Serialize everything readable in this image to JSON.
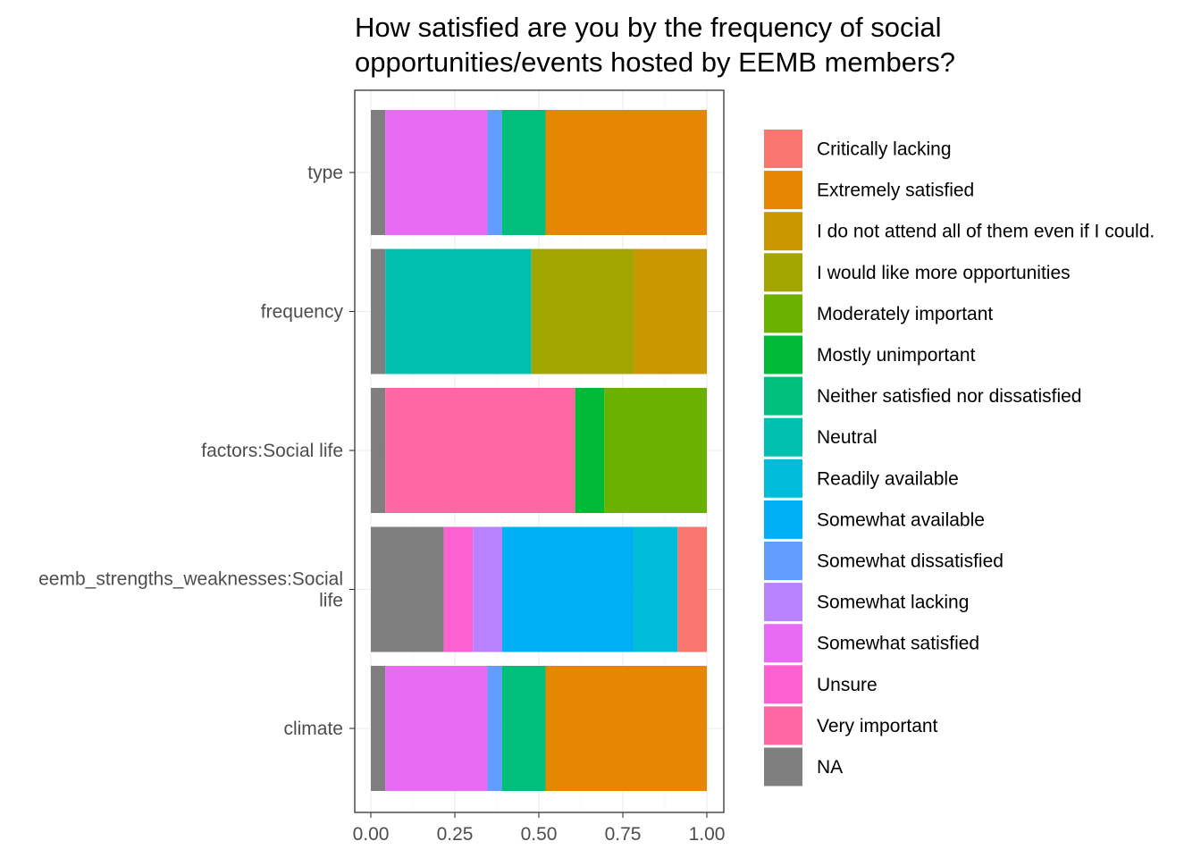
{
  "chart_data": {
    "type": "bar",
    "orientation": "horizontal",
    "stacked": true,
    "title": "How satisfied are you by the frequency of social opportunities/events hosted by EEMB members?",
    "title_lines": [
      "How satisfied are you by the frequency of social",
      "opportunities/events hosted by EEMB members?"
    ],
    "xlabel": "",
    "ylabel": "",
    "xlim": [
      0,
      1
    ],
    "x_ticks": [
      "0.00",
      "0.25",
      "0.50",
      "0.75",
      "1.00"
    ],
    "x_tick_values": [
      0,
      0.25,
      0.5,
      0.75,
      1.0
    ],
    "grid": true,
    "legend_position": "right",
    "categories": [
      {
        "label_lines": [
          "type"
        ],
        "segments": [
          {
            "level": "NA",
            "value": 0.043
          },
          {
            "level": "Somewhat satisfied",
            "value": 0.304
          },
          {
            "level": "Somewhat dissatisfied",
            "value": 0.043
          },
          {
            "level": "Neither satisfied nor dissatisfied",
            "value": 0.13
          },
          {
            "level": "Extremely satisfied",
            "value": 0.48
          }
        ]
      },
      {
        "label_lines": [
          "frequency"
        ],
        "segments": [
          {
            "level": "NA",
            "value": 0.043
          },
          {
            "level": "Neutral",
            "value": 0.435
          },
          {
            "level": "I would like more opportunities",
            "value": 0.304
          },
          {
            "level": "I do not attend all of them even if I could.",
            "value": 0.218
          }
        ]
      },
      {
        "label_lines": [
          "factors:Social life"
        ],
        "segments": [
          {
            "level": "NA",
            "value": 0.043
          },
          {
            "level": "Very important",
            "value": 0.565
          },
          {
            "level": "Mostly unimportant",
            "value": 0.087
          },
          {
            "level": "Moderately important",
            "value": 0.305
          }
        ]
      },
      {
        "label_lines": [
          "eemb_strengths_weaknesses:Social",
          "life"
        ],
        "segments": [
          {
            "level": "NA",
            "value": 0.217
          },
          {
            "level": "Unsure",
            "value": 0.087
          },
          {
            "level": "Somewhat lacking",
            "value": 0.087
          },
          {
            "level": "Somewhat available",
            "value": 0.391
          },
          {
            "level": "Readily available",
            "value": 0.131
          },
          {
            "level": "Critically lacking",
            "value": 0.087
          }
        ]
      },
      {
        "label_lines": [
          "climate"
        ],
        "segments": [
          {
            "level": "NA",
            "value": 0.043
          },
          {
            "level": "Somewhat satisfied",
            "value": 0.304
          },
          {
            "level": "Somewhat dissatisfied",
            "value": 0.043
          },
          {
            "level": "Neither satisfied nor dissatisfied",
            "value": 0.13
          },
          {
            "level": "Extremely satisfied",
            "value": 0.48
          }
        ]
      }
    ],
    "legend": [
      {
        "label": "Critically lacking",
        "color": "#F8766D"
      },
      {
        "label": "Extremely satisfied",
        "color": "#E58700"
      },
      {
        "label": "I do not attend all of them even if I could.",
        "color": "#C99800"
      },
      {
        "label": "I would like more opportunities",
        "color": "#A3A500"
      },
      {
        "label": "Moderately important",
        "color": "#6BB100"
      },
      {
        "label": "Mostly unimportant",
        "color": "#00BA38"
      },
      {
        "label": "Neither satisfied nor dissatisfied",
        "color": "#00BF7D"
      },
      {
        "label": "Neutral",
        "color": "#00C0AF"
      },
      {
        "label": "Readily available",
        "color": "#00BCD8"
      },
      {
        "label": "Somewhat available",
        "color": "#00B0F6"
      },
      {
        "label": "Somewhat dissatisfied",
        "color": "#619CFF"
      },
      {
        "label": "Somewhat lacking",
        "color": "#B983FF"
      },
      {
        "label": "Somewhat satisfied",
        "color": "#E76BF3"
      },
      {
        "label": "Unsure",
        "color": "#FD61D1"
      },
      {
        "label": "Very important",
        "color": "#FF67A4"
      },
      {
        "label": "NA",
        "color": "#7F7F7F"
      }
    ]
  }
}
